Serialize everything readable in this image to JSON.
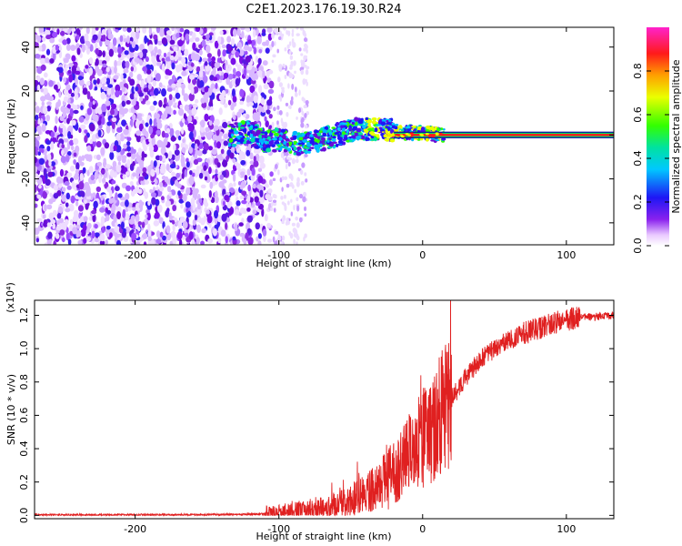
{
  "title": "C2E1.2023.176.19.30.R24",
  "colors": {
    "snr_line": "#e02020",
    "axis": "#000000",
    "background": "#ffffff"
  },
  "chart_data": [
    {
      "type": "heatmap",
      "xlabel": "Height of straight line (km)",
      "ylabel": "Frequency (Hz)",
      "xlim": [
        -270,
        133
      ],
      "ylim": [
        -50,
        49
      ],
      "xticks": [
        -200,
        -100,
        0,
        100
      ],
      "yticks": [
        -40,
        -20,
        0,
        20,
        40
      ],
      "colorbar": {
        "label": "Normalized spectral amplitude",
        "range": [
          0.0,
          1.0
        ],
        "ticks": [
          "0.0",
          "0.2",
          "0.4",
          "0.6",
          "0.8"
        ],
        "tick_values": [
          0.0,
          0.2,
          0.4,
          0.6,
          0.8
        ],
        "colormap": "rainbow (white, violet, blue, cyan, green, yellow, red, magenta)"
      },
      "features": {
        "noise_region_x": [
          -270,
          -105
        ],
        "fading_noise_x": [
          -105,
          -80
        ],
        "wavy_band_x": [
          -135,
          15
        ],
        "strong_line_x": [
          -20,
          133
        ],
        "strong_line_frequency_hz": 0,
        "band_centerline": [
          {
            "x": -130,
            "y": 1
          },
          {
            "x": -120,
            "y": 1
          },
          {
            "x": -110,
            "y": -3
          },
          {
            "x": -100,
            "y": -2
          },
          {
            "x": -90,
            "y": -4
          },
          {
            "x": -80,
            "y": -3
          },
          {
            "x": -70,
            "y": -2
          },
          {
            "x": -60,
            "y": 0
          },
          {
            "x": -50,
            "y": 2
          },
          {
            "x": -40,
            "y": 3
          },
          {
            "x": -30,
            "y": 2
          },
          {
            "x": -20,
            "y": 2
          },
          {
            "x": -10,
            "y": 1
          },
          {
            "x": 0,
            "y": 1
          },
          {
            "x": 10,
            "y": 0
          }
        ]
      }
    },
    {
      "type": "line",
      "xlabel": "Height of straight line (km)",
      "ylabel": "SNR (10 * v/v)",
      "multiplier": "(x10⁴)",
      "xlim": [
        -270,
        133
      ],
      "ylim": [
        -0.02,
        1.29
      ],
      "xticks": [
        -200,
        -100,
        0,
        100
      ],
      "yticks": [
        0.0,
        0.2,
        0.4,
        0.6,
        0.8,
        1.0,
        1.2
      ],
      "ytick_labels": [
        "0.0",
        "0.2",
        "0.4",
        "0.6",
        "0.8",
        "1.0",
        "1.2"
      ],
      "series": [
        {
          "x": [
            -270,
            -200,
            -150,
            -120,
            -100,
            -90,
            -80,
            -70,
            -60,
            -50,
            -40,
            -30,
            -20,
            -10,
            0,
            10,
            20,
            30,
            40,
            50,
            60,
            70,
            80,
            90,
            100,
            110,
            120,
            133
          ],
          "y": [
            0.003,
            0.003,
            0.004,
            0.006,
            0.01,
            0.02,
            0.03,
            0.04,
            0.06,
            0.09,
            0.13,
            0.19,
            0.27,
            0.36,
            0.46,
            0.58,
            0.7,
            0.83,
            0.93,
            1.0,
            1.05,
            1.09,
            1.12,
            1.15,
            1.17,
            1.19,
            1.19,
            1.2
          ]
        }
      ]
    }
  ]
}
